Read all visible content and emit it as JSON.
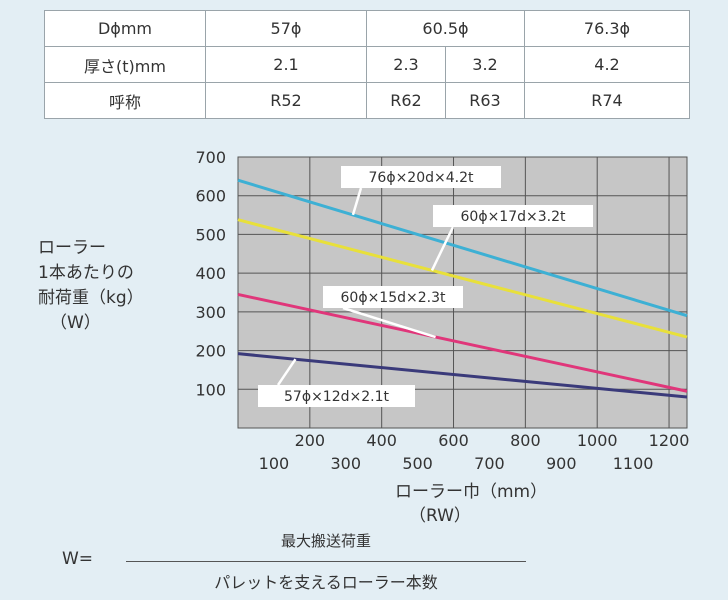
{
  "table": {
    "header": {
      "label": "Dϕmm",
      "c1": "57ϕ",
      "c2": "60.5ϕ",
      "c3": "76.3ϕ"
    },
    "thickness": {
      "label": "厚さ(t)mm",
      "c1": "2.1",
      "c2a": "2.3",
      "c2b": "3.2",
      "c3": "4.2"
    },
    "designation": {
      "label": "呼称",
      "c1": "R52",
      "c2a": "R62",
      "c2b": "R63",
      "c3": "R74"
    }
  },
  "ylabel_lines": [
    "ローラー",
    "1本あたりの",
    "耐荷重（kg）",
    "（W）"
  ],
  "xlabel_lines": [
    "ローラー巾（mm）",
    "（RW）"
  ],
  "formula": {
    "lhs": "W=",
    "numerator": "最大搬送荷重",
    "denominator": "パレットを支えるローラー本数"
  },
  "chart_data": {
    "type": "line",
    "ylim": [
      0,
      700
    ],
    "yticks": [
      100,
      200,
      300,
      400,
      500,
      600,
      700
    ],
    "xaxis_top": {
      "ticks": [
        200,
        400,
        600,
        800,
        1000,
        1200
      ],
      "range": [
        0,
        1250
      ]
    },
    "xaxis_bottom": {
      "ticks": [
        100,
        300,
        500,
        700,
        900,
        1100
      ],
      "range": [
        0,
        1250
      ]
    },
    "grid": true,
    "series": [
      {
        "name": "76ϕ×20d×4.2t",
        "color": "#3db0d4",
        "x": [
          0,
          1250
        ],
        "y": [
          640,
          290
        ]
      },
      {
        "name": "60ϕ×17d×3.2t",
        "color": "#e8e03a",
        "x": [
          0,
          1250
        ],
        "y": [
          538,
          235
        ]
      },
      {
        "name": "60ϕ×15d×2.3t",
        "color": "#e0367a",
        "x": [
          0,
          1250
        ],
        "y": [
          345,
          95
        ]
      },
      {
        "name": "57ϕ×12d×2.1t",
        "color": "#3a3a7a",
        "x": [
          0,
          1250
        ],
        "y": [
          192,
          80
        ]
      }
    ],
    "callouts": [
      {
        "series": 0,
        "text": "76ϕ×20d×4.2t",
        "at_x": 320
      },
      {
        "series": 1,
        "text": "60ϕ×17d×3.2t",
        "at_x": 540
      },
      {
        "series": 2,
        "text": "60ϕ×15d×2.3t",
        "at_x": 550
      },
      {
        "series": 3,
        "text": "57ϕ×12d×2.1t",
        "at_x": 160
      }
    ]
  }
}
